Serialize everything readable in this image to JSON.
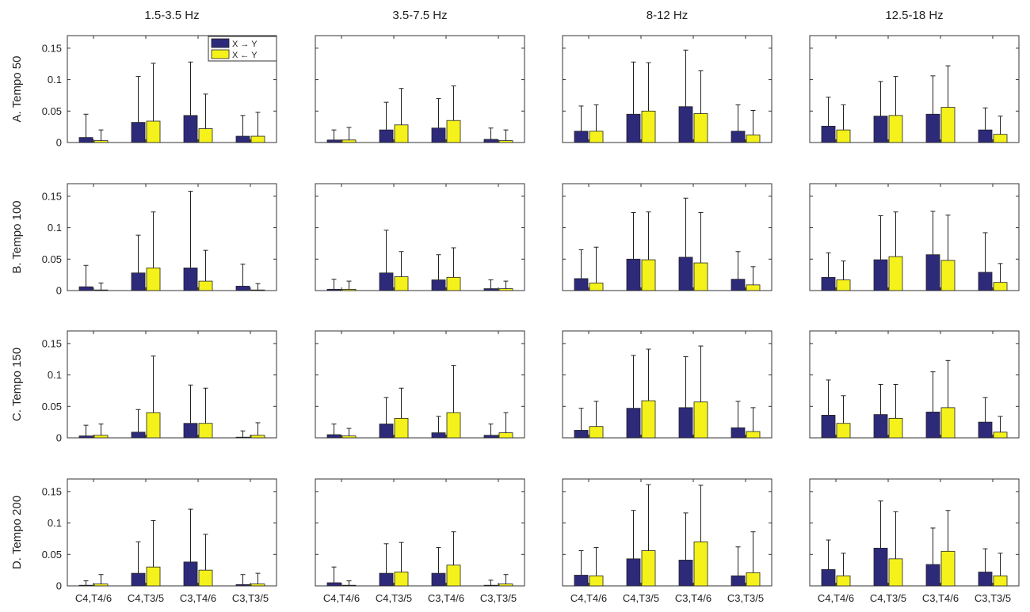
{
  "figure": {
    "legend": {
      "entries": [
        {
          "label": "X → Y",
          "color": "#2e2a7a"
        },
        {
          "label": "X ← Y",
          "color": "#f4f21a"
        }
      ],
      "placement": "top-right of first panel"
    }
  },
  "chart_data": {
    "type": "bar",
    "layout": "4x4 grid of grouped bar charts with upper error bars",
    "col_titles": [
      "1.5-3.5 Hz",
      "3.5-7.5 Hz",
      "8-12 Hz",
      "12.5-18 Hz"
    ],
    "row_labels": [
      "A. Tempo 50",
      "B. Tempo 100",
      "C. Tempo 150",
      "D. Tempo 200"
    ],
    "categories": [
      "C4,T4/6",
      "C4,T3/5",
      "C3,T4/6",
      "C3,T3/5"
    ],
    "series_names": [
      "X → Y",
      "X ← Y"
    ],
    "series_colors": [
      "#2e2a7a",
      "#f4f21a"
    ],
    "ylim": [
      0,
      0.17
    ],
    "yticks": [
      0,
      0.05,
      0.1,
      0.15
    ],
    "ytick_labels": [
      "0",
      "0.05",
      "0.1",
      "0.15"
    ],
    "panels": [
      [
        {
          "values": [
            [
              0.008,
              0.003
            ],
            [
              0.032,
              0.034
            ],
            [
              0.043,
              0.022
            ],
            [
              0.01,
              0.01
            ]
          ],
          "err_top": [
            [
              0.045,
              0.02
            ],
            [
              0.105,
              0.126
            ],
            [
              0.128,
              0.077
            ],
            [
              0.043,
              0.048
            ]
          ]
        },
        {
          "values": [
            [
              0.004,
              0.004
            ],
            [
              0.02,
              0.028
            ],
            [
              0.023,
              0.035
            ],
            [
              0.005,
              0.003
            ]
          ],
          "err_top": [
            [
              0.02,
              0.024
            ],
            [
              0.064,
              0.086
            ],
            [
              0.07,
              0.09
            ],
            [
              0.023,
              0.02
            ]
          ]
        },
        {
          "values": [
            [
              0.018,
              0.018
            ],
            [
              0.045,
              0.05
            ],
            [
              0.057,
              0.046
            ],
            [
              0.018,
              0.012
            ]
          ],
          "err_top": [
            [
              0.058,
              0.06
            ],
            [
              0.128,
              0.127
            ],
            [
              0.147,
              0.114
            ],
            [
              0.06,
              0.051
            ]
          ]
        },
        {
          "values": [
            [
              0.026,
              0.02
            ],
            [
              0.042,
              0.043
            ],
            [
              0.045,
              0.056
            ],
            [
              0.02,
              0.013
            ]
          ],
          "err_top": [
            [
              0.072,
              0.06
            ],
            [
              0.097,
              0.105
            ],
            [
              0.106,
              0.122
            ],
            [
              0.055,
              0.042
            ]
          ]
        }
      ],
      [
        {
          "values": [
            [
              0.006,
              0.001
            ],
            [
              0.028,
              0.036
            ],
            [
              0.036,
              0.015
            ],
            [
              0.007,
              0.001
            ]
          ],
          "err_top": [
            [
              0.04,
              0.012
            ],
            [
              0.088,
              0.125
            ],
            [
              0.158,
              0.064
            ],
            [
              0.042,
              0.011
            ]
          ]
        },
        {
          "values": [
            [
              0.002,
              0.002
            ],
            [
              0.028,
              0.022
            ],
            [
              0.017,
              0.021
            ],
            [
              0.003,
              0.003
            ]
          ],
          "err_top": [
            [
              0.018,
              0.015
            ],
            [
              0.096,
              0.062
            ],
            [
              0.057,
              0.068
            ],
            [
              0.017,
              0.015
            ]
          ]
        },
        {
          "values": [
            [
              0.019,
              0.012
            ],
            [
              0.05,
              0.049
            ],
            [
              0.053,
              0.044
            ],
            [
              0.018,
              0.009
            ]
          ],
          "err_top": [
            [
              0.065,
              0.069
            ],
            [
              0.124,
              0.125
            ],
            [
              0.147,
              0.124
            ],
            [
              0.062,
              0.038
            ]
          ]
        },
        {
          "values": [
            [
              0.021,
              0.017
            ],
            [
              0.049,
              0.054
            ],
            [
              0.057,
              0.048
            ],
            [
              0.029,
              0.013
            ]
          ],
          "err_top": [
            [
              0.06,
              0.047
            ],
            [
              0.119,
              0.125
            ],
            [
              0.126,
              0.12
            ],
            [
              0.092,
              0.043
            ]
          ]
        }
      ],
      [
        {
          "values": [
            [
              0.003,
              0.004
            ],
            [
              0.009,
              0.04
            ],
            [
              0.023,
              0.023
            ],
            [
              0.001,
              0.004
            ]
          ],
          "err_top": [
            [
              0.02,
              0.022
            ],
            [
              0.045,
              0.13
            ],
            [
              0.084,
              0.079
            ],
            [
              0.011,
              0.024
            ]
          ]
        },
        {
          "values": [
            [
              0.005,
              0.003
            ],
            [
              0.022,
              0.031
            ],
            [
              0.008,
              0.04
            ],
            [
              0.004,
              0.008
            ]
          ],
          "err_top": [
            [
              0.022,
              0.015
            ],
            [
              0.064,
              0.079
            ],
            [
              0.034,
              0.115
            ],
            [
              0.022,
              0.04
            ]
          ]
        },
        {
          "values": [
            [
              0.012,
              0.018
            ],
            [
              0.047,
              0.059
            ],
            [
              0.048,
              0.057
            ],
            [
              0.016,
              0.01
            ]
          ],
          "err_top": [
            [
              0.047,
              0.058
            ],
            [
              0.131,
              0.141
            ],
            [
              0.129,
              0.146
            ],
            [
              0.058,
              0.048
            ]
          ]
        },
        {
          "values": [
            [
              0.036,
              0.023
            ],
            [
              0.037,
              0.031
            ],
            [
              0.041,
              0.048
            ],
            [
              0.025,
              0.009
            ]
          ],
          "err_top": [
            [
              0.092,
              0.067
            ],
            [
              0.085,
              0.085
            ],
            [
              0.105,
              0.123
            ],
            [
              0.064,
              0.034
            ]
          ]
        }
      ],
      [
        {
          "values": [
            [
              0.001,
              0.003
            ],
            [
              0.02,
              0.03
            ],
            [
              0.038,
              0.025
            ],
            [
              0.002,
              0.003
            ]
          ],
          "err_top": [
            [
              0.008,
              0.018
            ],
            [
              0.07,
              0.104
            ],
            [
              0.122,
              0.082
            ],
            [
              0.018,
              0.02
            ]
          ]
        },
        {
          "values": [
            [
              0.005,
              0.001
            ],
            [
              0.02,
              0.022
            ],
            [
              0.02,
              0.033
            ],
            [
              0.001,
              0.003
            ]
          ],
          "err_top": [
            [
              0.03,
              0.008
            ],
            [
              0.067,
              0.069
            ],
            [
              0.061,
              0.086
            ],
            [
              0.009,
              0.018
            ]
          ]
        },
        {
          "values": [
            [
              0.017,
              0.016
            ],
            [
              0.043,
              0.056
            ],
            [
              0.041,
              0.07
            ],
            [
              0.016,
              0.021
            ]
          ],
          "err_top": [
            [
              0.056,
              0.061
            ],
            [
              0.12,
              0.161
            ],
            [
              0.116,
              0.16
            ],
            [
              0.062,
              0.086
            ]
          ]
        },
        {
          "values": [
            [
              0.026,
              0.016
            ],
            [
              0.06,
              0.043
            ],
            [
              0.034,
              0.055
            ],
            [
              0.022,
              0.016
            ]
          ],
          "err_top": [
            [
              0.073,
              0.052
            ],
            [
              0.135,
              0.118
            ],
            [
              0.092,
              0.12
            ],
            [
              0.059,
              0.052
            ]
          ]
        }
      ]
    ]
  }
}
